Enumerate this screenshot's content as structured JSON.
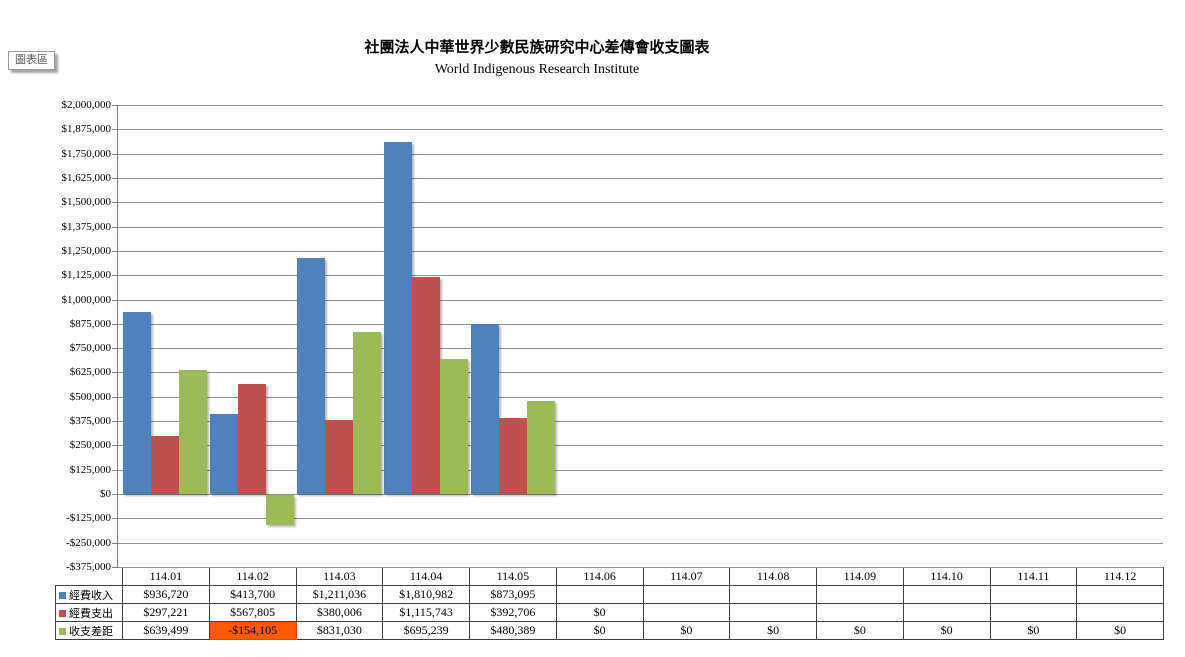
{
  "chart_area_label": "圖表區",
  "colors": {
    "income": "#4F81BD",
    "expense": "#C0504D",
    "balance": "#9BBB59",
    "highlight": "#FF5A00",
    "highlight_border": "#E04A00",
    "gridline": "#8F8F8F",
    "axis": "#808080",
    "table_border": "#404040"
  },
  "chart_data": {
    "type": "bar",
    "title": "社團法人中華世界少數民族研究中心差傳會收支圖表",
    "subtitle": "World Indigenous Research Institute",
    "categories": [
      "114.01",
      "114.02",
      "114.03",
      "114.04",
      "114.05",
      "114.06",
      "114.07",
      "114.08",
      "114.09",
      "114.10",
      "114.11",
      "114.12"
    ],
    "series": [
      {
        "name": "經費收入",
        "color": "#4F81BD",
        "values": [
          936720,
          413700,
          1211036,
          1810982,
          873095,
          null,
          null,
          null,
          null,
          null,
          null,
          null
        ]
      },
      {
        "name": "經費支出",
        "color": "#C0504D",
        "values": [
          297221,
          567805,
          380006,
          1115743,
          392706,
          0,
          null,
          null,
          null,
          null,
          null,
          null
        ]
      },
      {
        "name": "收支差距",
        "color": "#9BBB59",
        "values": [
          639499,
          -154105,
          831030,
          695239,
          480389,
          0,
          0,
          0,
          0,
          0,
          0,
          0
        ]
      }
    ],
    "ylim": [
      -375000,
      2000000
    ],
    "ytick_step": 125000,
    "ytick_labels": [
      "$2,000,000",
      "$1,875,000",
      "$1,750,000",
      "$1,625,000",
      "$1,500,000",
      "$1,375,000",
      "$1,250,000",
      "$1,125,000",
      "$1,000,000",
      "$875,000",
      "$750,000",
      "$625,000",
      "$500,000",
      "$375,000",
      "$250,000",
      "$125,000",
      "$0",
      "-$125,000",
      "-$250,000",
      "-$375,000"
    ],
    "grid": true,
    "legend_position": "data-table-left"
  },
  "data_table": {
    "rows": [
      {
        "label": "經費收入",
        "swatch": "#4F81BD",
        "cells": [
          "$936,720",
          "$413,700",
          "$1,211,036",
          "$1,810,982",
          "$873,095",
          "",
          "",
          "",
          "",
          "",
          "",
          ""
        ]
      },
      {
        "label": "經費支出",
        "swatch": "#C0504D",
        "cells": [
          "$297,221",
          "$567,805",
          "$380,006",
          "$1,115,743",
          "$392,706",
          "$0",
          "",
          "",
          "",
          "",
          "",
          ""
        ]
      },
      {
        "label": "收支差距",
        "swatch": "#9BBB59",
        "cells": [
          "$639,499",
          "-$154,105",
          "$831,030",
          "$695,239",
          "$480,389",
          "$0",
          "$0",
          "$0",
          "$0",
          "$0",
          "$0",
          "$0"
        ]
      }
    ],
    "highlight_cell": {
      "row_label": "收支差距",
      "column": "114.02",
      "value": "-$154,105",
      "color": "#FF5A00"
    }
  }
}
